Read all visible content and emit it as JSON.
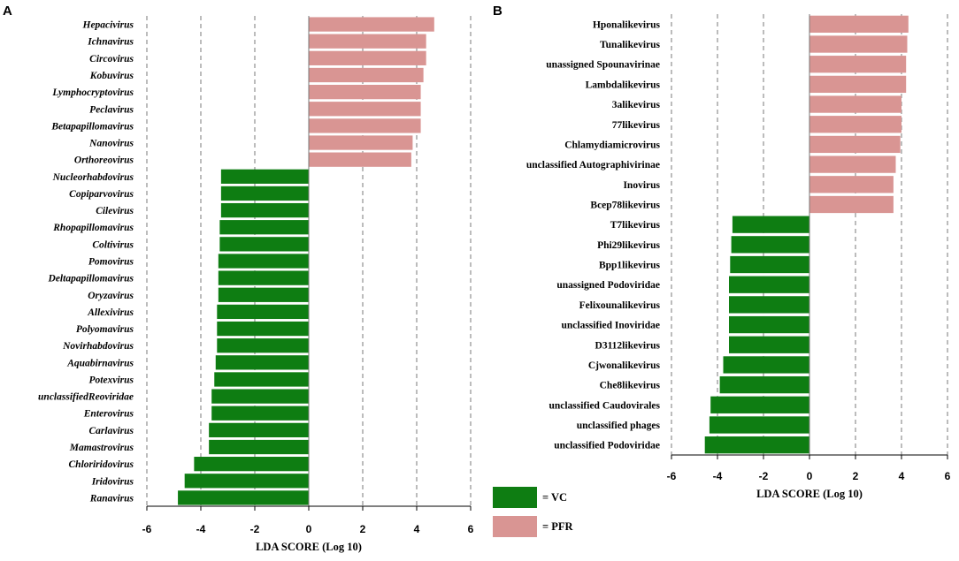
{
  "colors": {
    "VC": "#0e7d12",
    "PFR": "#d99593",
    "grid": "#7a7a7a",
    "axis": "#000000"
  },
  "legend": [
    {
      "key": "VC",
      "label": "= VC"
    },
    {
      "key": "PFR",
      "label": "= PFR"
    }
  ],
  "chart_data": [
    {
      "panel": "A",
      "type": "bar",
      "orientation": "horizontal",
      "xlabel": "LDA SCORE (Log 10)",
      "xlim": [
        -6,
        6
      ],
      "xticks": [
        "-6",
        "-4",
        "-2",
        "0",
        "2",
        "4",
        "6"
      ],
      "label_style": "italic",
      "categories": [
        "Hepacivirus",
        "Ichnavirus",
        "Circovirus",
        "Kobuvirus",
        "Lymphocryptovirus",
        "Peclavirus",
        "Betapapillomavirus",
        "Nanovirus",
        "Orthoreovirus",
        "Nucleorhabdovirus",
        "Copiparvovirus",
        "Cilevirus",
        "Rhopapillomavirus",
        "Coltivirus",
        "Pomovirus",
        "Deltapapillomavirus",
        "Oryzavirus",
        "Allexivirus",
        "Polyomavirus",
        "Novirhabdovirus",
        "Aquabirnavirus",
        "Potexvirus",
        "unclassifiedReoviridae",
        "Enterovirus",
        "Carlavirus",
        "Mamastrovirus",
        "Chloriridovirus",
        "Iridovirus",
        "Ranavirus"
      ],
      "values": [
        4.65,
        4.35,
        4.35,
        4.25,
        4.15,
        4.15,
        4.15,
        3.85,
        3.8,
        -3.25,
        -3.25,
        -3.25,
        -3.3,
        -3.3,
        -3.35,
        -3.35,
        -3.35,
        -3.4,
        -3.4,
        -3.4,
        -3.45,
        -3.5,
        -3.6,
        -3.6,
        -3.7,
        -3.7,
        -4.25,
        -4.6,
        -4.85
      ],
      "groups": [
        "PFR",
        "PFR",
        "PFR",
        "PFR",
        "PFR",
        "PFR",
        "PFR",
        "PFR",
        "PFR",
        "VC",
        "VC",
        "VC",
        "VC",
        "VC",
        "VC",
        "VC",
        "VC",
        "VC",
        "VC",
        "VC",
        "VC",
        "VC",
        "VC",
        "VC",
        "VC",
        "VC",
        "VC",
        "VC",
        "VC"
      ]
    },
    {
      "panel": "B",
      "type": "bar",
      "orientation": "horizontal",
      "xlabel": "LDA SCORE (Log 10)",
      "xlim": [
        -6,
        6
      ],
      "xticks": [
        "-6",
        "-4",
        "-2",
        "0",
        "2",
        "4",
        "6"
      ],
      "label_style": "normal",
      "categories": [
        "Hponalikevirus",
        "Tunalikevirus",
        "unassigned Spounavirinae",
        "Lambdalikevirus",
        "3alikevirus",
        "77likevirus",
        "Chlamydiamicrovirus",
        "unclassified Autographivirinae",
        "Inovirus",
        "Bcep78likevirus",
        "T7likevirus",
        "Phi29likevirus",
        "Bpp1likevirus",
        "unassigned Podoviridae",
        "Felixounalikevirus",
        "unclassified Inoviridae",
        "D3112likevirus",
        "Cjwonalikevirus",
        "Che8likevirus",
        "unclassified Caudovirales",
        "unclassified phages",
        "unclassified Podoviridae"
      ],
      "values": [
        4.3,
        4.25,
        4.2,
        4.2,
        4.0,
        4.0,
        3.95,
        3.75,
        3.65,
        3.65,
        -3.35,
        -3.4,
        -3.45,
        -3.5,
        -3.5,
        -3.5,
        -3.5,
        -3.75,
        -3.9,
        -4.3,
        -4.35,
        -4.55
      ],
      "groups": [
        "PFR",
        "PFR",
        "PFR",
        "PFR",
        "PFR",
        "PFR",
        "PFR",
        "PFR",
        "PFR",
        "PFR",
        "VC",
        "VC",
        "VC",
        "VC",
        "VC",
        "VC",
        "VC",
        "VC",
        "VC",
        "VC",
        "VC",
        "VC"
      ]
    }
  ]
}
